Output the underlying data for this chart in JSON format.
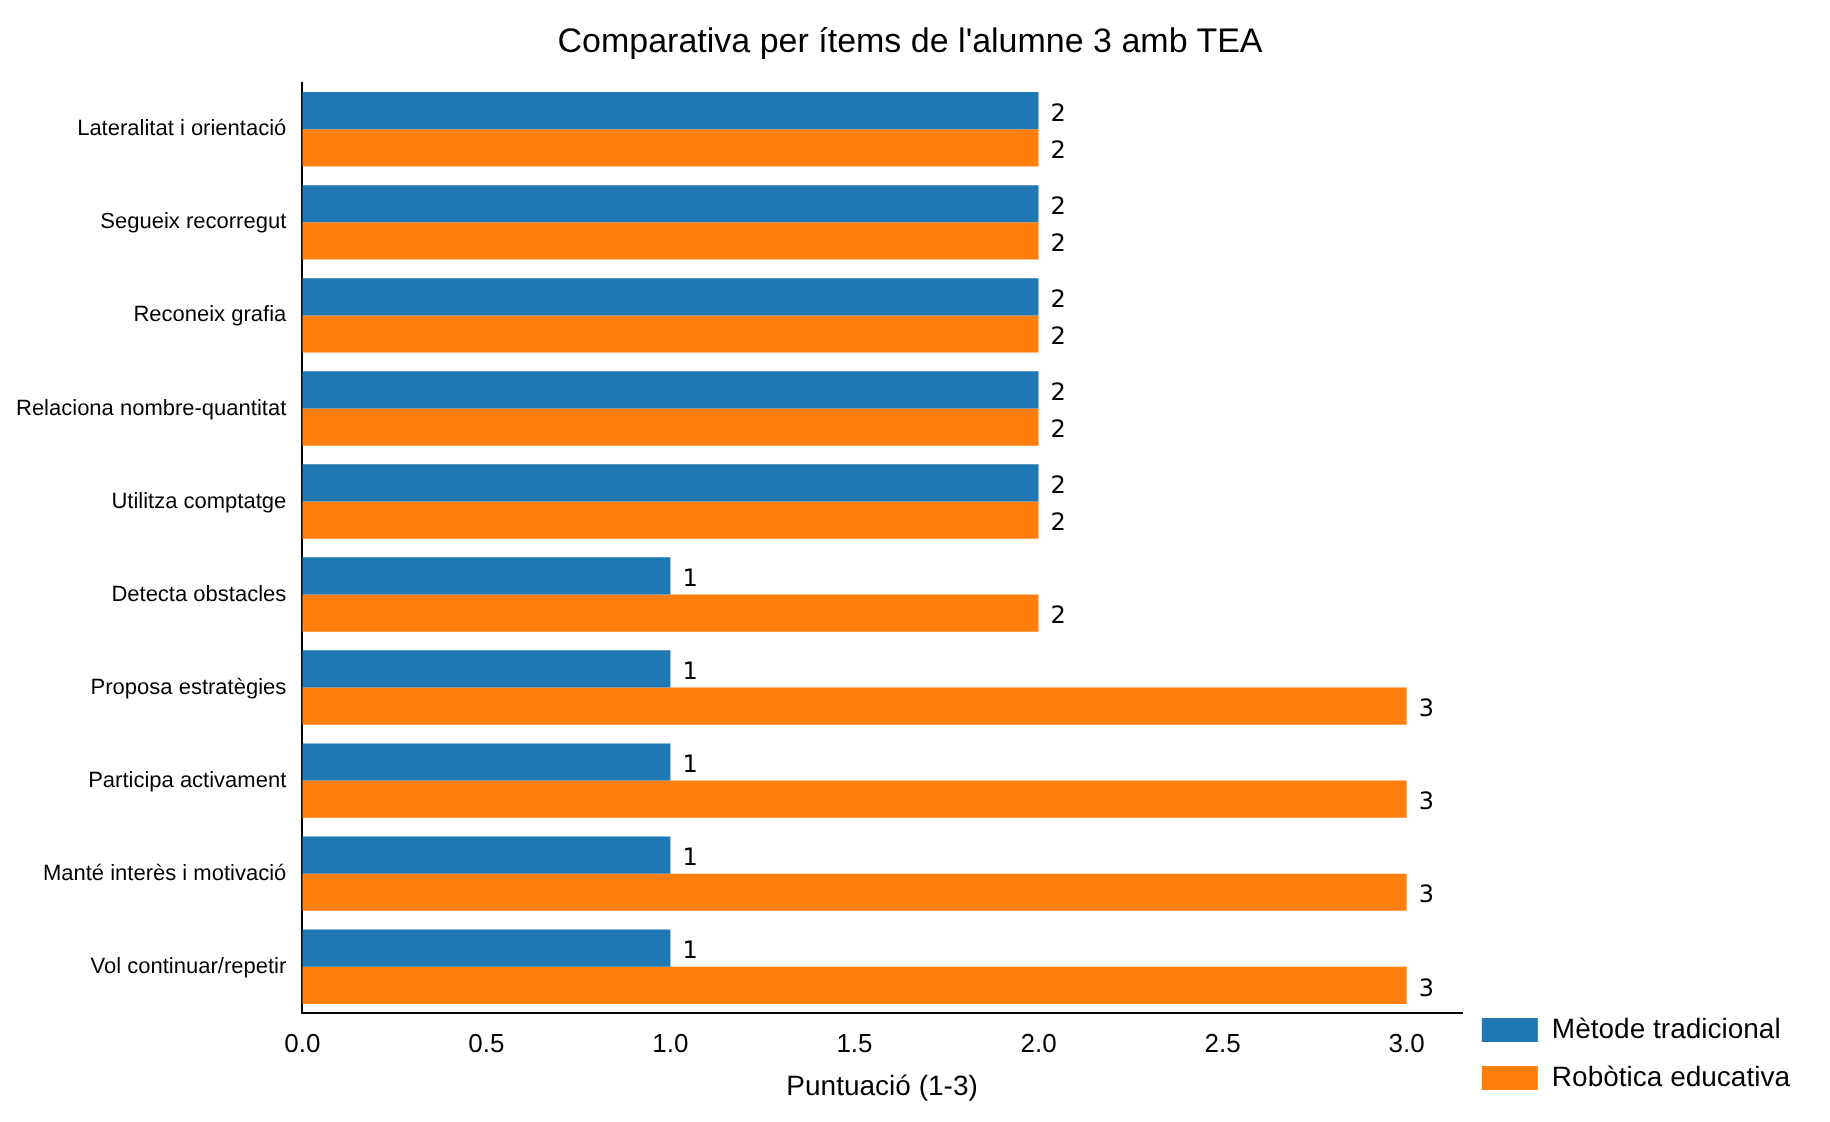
{
  "chart_data": {
    "type": "bar",
    "orientation": "horizontal",
    "title": "Comparativa per ítems de l'alumne 3 amb TEA",
    "xlabel": "Puntuació (1-3)",
    "categories": [
      "Lateralitat i orientació",
      "Segueix recorregut",
      "Reconeix grafia",
      "Relaciona nombre-quantitat",
      "Utilitza comptatge",
      "Detecta obstacles",
      "Proposa estratègies",
      "Participa activament",
      "Manté interès i motivació",
      "Vol continuar/repetir"
    ],
    "series": [
      {
        "name": "Mètode tradicional",
        "color": "#1f77b4",
        "values": [
          2,
          2,
          2,
          2,
          2,
          1,
          1,
          1,
          1,
          1
        ]
      },
      {
        "name": "Robòtica educativa",
        "color": "#ff7f0e",
        "values": [
          2,
          2,
          2,
          2,
          2,
          2,
          3,
          3,
          3,
          3
        ]
      }
    ],
    "xlim": [
      0,
      3.15
    ],
    "xticks": [
      {
        "value": 0,
        "label": "0.0"
      },
      {
        "value": 0.5,
        "label": "0.5"
      },
      {
        "value": 1,
        "label": "1.0"
      },
      {
        "value": 1.5,
        "label": "1.5"
      },
      {
        "value": 2,
        "label": "2.0"
      },
      {
        "value": 2.5,
        "label": "2.5"
      },
      {
        "value": 3,
        "label": "3.0"
      }
    ],
    "grid": false,
    "legend": "bottom right",
    "data_labels": true
  }
}
